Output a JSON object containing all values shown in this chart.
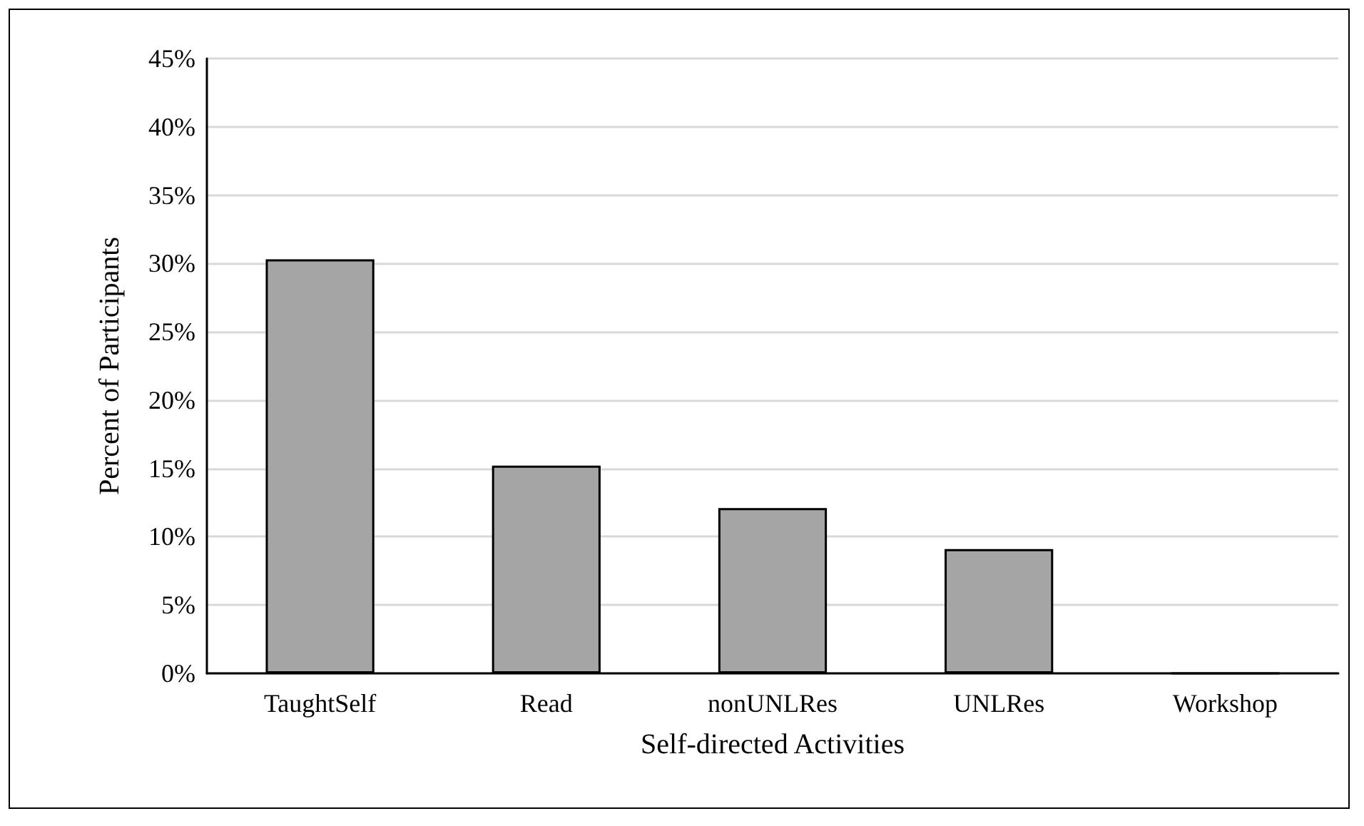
{
  "chart_data": {
    "type": "bar",
    "xlabel": "Self-directed Activities",
    "ylabel": "Percent of Participants",
    "categories": [
      "TaughtSelf",
      "Read",
      "nonUNLRes",
      "UNLRes",
      "Workshop"
    ],
    "values": [
      30.3,
      15.2,
      12.1,
      9.1,
      0
    ],
    "color": "#a5a5a5",
    "ylim": [
      0,
      45
    ],
    "yticks": [
      {
        "value": 0,
        "label": "0%"
      },
      {
        "value": 5,
        "label": "5%"
      },
      {
        "value": 10,
        "label": "10%"
      },
      {
        "value": 15,
        "label": "15%"
      },
      {
        "value": 20,
        "label": "20%"
      },
      {
        "value": 25,
        "label": "25%"
      },
      {
        "value": 30,
        "label": "30%"
      },
      {
        "value": 35,
        "label": "35%"
      },
      {
        "value": 40,
        "label": "40%"
      },
      {
        "value": 45,
        "label": "45%"
      }
    ],
    "grid": "y"
  }
}
